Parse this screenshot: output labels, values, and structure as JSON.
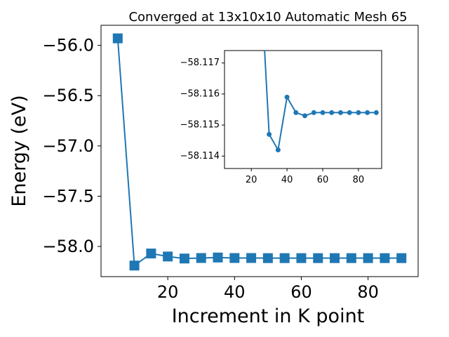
{
  "chart_data": [
    {
      "type": "line",
      "title": "Converged at 13x10x10 Automatic Mesh 65",
      "xlabel": "Increment in K point",
      "ylabel": "Energy (eV)",
      "xlim": [
        0,
        95
      ],
      "ylim": [
        -58.3,
        -55.8
      ],
      "xticks": [
        20,
        40,
        60,
        80
      ],
      "yticks": [
        -56.0,
        -56.5,
        -57.0,
        -57.5,
        -58.0
      ],
      "xtick_labels": [
        "20",
        "40",
        "60",
        "80"
      ],
      "ytick_labels": [
        "−56.0",
        "−56.5",
        "−57.0",
        "−57.5",
        "−58.0"
      ],
      "marker": "square",
      "color": "#1f77b4",
      "x": [
        5,
        10,
        15,
        20,
        25,
        30,
        35,
        40,
        45,
        50,
        55,
        60,
        65,
        70,
        75,
        80,
        85,
        90
      ],
      "y": [
        -55.93,
        -58.19,
        -58.07,
        -58.1,
        -58.12,
        -58.115,
        -58.11,
        -58.115,
        -58.115,
        -58.116,
        -58.116,
        -58.116,
        -58.116,
        -58.116,
        -58.116,
        -58.116,
        -58.116,
        -58.116
      ]
    },
    {
      "type": "line",
      "role": "inset",
      "xlim": [
        5,
        93
      ],
      "ylim": [
        -58.1136,
        -58.1174
      ],
      "xticks": [
        20,
        40,
        60,
        80
      ],
      "yticks": [
        -58.117,
        -58.116,
        -58.115,
        -58.114
      ],
      "xtick_labels": [
        "20",
        "40",
        "60",
        "80"
      ],
      "ytick_labels": [
        "−58.117",
        "−58.116",
        "−58.115",
        "−58.114"
      ],
      "marker": "circle",
      "color": "#1f77b4",
      "x": [
        25,
        30,
        35,
        40,
        45,
        50,
        55,
        60,
        65,
        70,
        75,
        80,
        85,
        90
      ],
      "y": [
        -58.12,
        -58.1147,
        -58.1142,
        -58.1159,
        -58.1154,
        -58.1153,
        -58.1154,
        -58.1154,
        -58.1154,
        -58.1154,
        -58.1154,
        -58.1154,
        -58.1154,
        -58.1154
      ]
    }
  ]
}
